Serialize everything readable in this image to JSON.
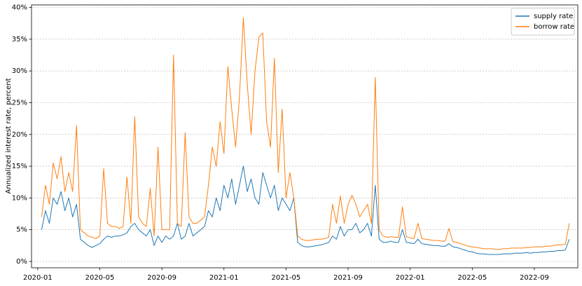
{
  "chart_data": {
    "type": "line",
    "ylabel": "Annualized interest rate, percent",
    "x": [
      0.25,
      0.5,
      0.75,
      1,
      1.25,
      1.5,
      1.75,
      2,
      2.25,
      2.5,
      2.75,
      3,
      3.25,
      3.5,
      3.75,
      4,
      4.25,
      4.5,
      4.75,
      5,
      5.25,
      5.5,
      5.75,
      6,
      6.25,
      6.5,
      6.75,
      7,
      7.25,
      7.5,
      7.75,
      8,
      8.25,
      8.5,
      8.75,
      9,
      9.25,
      9.5,
      9.75,
      10,
      10.25,
      10.5,
      10.75,
      11,
      11.25,
      11.5,
      11.75,
      12,
      12.25,
      12.5,
      12.75,
      13,
      13.25,
      13.5,
      13.75,
      14,
      14.25,
      14.5,
      14.75,
      15,
      15.25,
      15.5,
      15.75,
      16,
      16.25,
      16.5,
      16.75,
      17,
      17.25,
      17.5,
      17.75,
      18,
      18.25,
      18.5,
      18.75,
      19,
      19.25,
      19.5,
      19.75,
      20,
      20.25,
      20.5,
      20.75,
      21,
      21.25,
      21.5,
      21.75,
      22,
      22.25,
      22.5,
      22.75,
      23,
      23.25,
      23.5,
      23.75,
      24,
      24.25,
      24.5,
      24.75,
      25,
      25.25,
      25.5,
      25.75,
      26,
      26.25,
      26.5,
      26.75,
      27,
      27.25,
      27.5,
      27.75,
      28,
      28.25,
      28.5,
      28.75,
      29,
      29.25,
      29.5,
      29.75,
      30,
      30.25,
      30.5,
      30.75,
      31,
      31.25,
      31.5,
      31.75,
      32,
      32.25,
      32.5,
      32.75,
      33,
      33.25,
      33.5,
      33.75,
      34,
      34.25
    ],
    "series": [
      {
        "name": "supply rate",
        "color": "#1f77b4",
        "values": [
          5,
          8,
          6,
          10,
          9,
          11,
          8,
          10,
          7,
          9,
          3.5,
          3,
          2.5,
          2.2,
          2.5,
          2.8,
          3.5,
          4,
          3.8,
          4,
          4,
          4.2,
          4.5,
          5.5,
          6,
          5,
          4.5,
          4,
          5,
          2.5,
          4,
          3,
          4,
          3.5,
          4,
          6,
          3.5,
          4,
          6,
          4,
          4.5,
          5,
          5.5,
          8,
          7,
          10,
          8,
          12,
          10,
          13,
          9,
          12,
          15,
          11,
          13,
          10,
          9,
          14,
          12,
          10,
          12,
          8,
          10,
          9,
          8,
          10,
          3,
          2.5,
          2.3,
          2.3,
          2.4,
          2.5,
          2.6,
          2.8,
          3,
          4,
          3.5,
          5.5,
          4,
          5,
          5,
          6,
          4.5,
          5,
          6,
          4,
          12,
          3.5,
          3,
          3,
          3.2,
          3,
          3,
          5,
          3,
          2.9,
          2.8,
          3.5,
          2.8,
          2.7,
          2.6,
          2.5,
          2.5,
          2.4,
          2.4,
          2.8,
          2.3,
          2.2,
          2,
          1.8,
          1.6,
          1.5,
          1.3,
          1.2,
          1.2,
          1.1,
          1.1,
          1.1,
          1.1,
          1.2,
          1.2,
          1.2,
          1.3,
          1.3,
          1.3,
          1.4,
          1.3,
          1.4,
          1.4,
          1.5,
          1.5,
          1.6,
          1.6,
          1.7,
          1.7,
          1.8,
          3.5
        ]
      },
      {
        "name": "borrow rate",
        "color": "#ff7f0e",
        "values": [
          7,
          12,
          9,
          15.5,
          13,
          16.5,
          11,
          14,
          11,
          21.4,
          5,
          4.5,
          4,
          3.8,
          3.6,
          4,
          14.6,
          6,
          5.5,
          5.5,
          5.2,
          5.5,
          13.3,
          6,
          22.8,
          7,
          6,
          5.5,
          11.5,
          4,
          18,
          5,
          5,
          5,
          32.5,
          6,
          5.5,
          20.3,
          7,
          6,
          6,
          6.5,
          7,
          12,
          18,
          15,
          22,
          17,
          30.7,
          24,
          18,
          26,
          38.4,
          28,
          20,
          30,
          35.3,
          36,
          22,
          18,
          32,
          14,
          24,
          10,
          14,
          10,
          4,
          3.5,
          3.3,
          3.3,
          3.4,
          3.5,
          3.5,
          3.6,
          3.8,
          9,
          6,
          10.3,
          6,
          9,
          10.4,
          9,
          7,
          8,
          9,
          6,
          29,
          5,
          4,
          3.8,
          3.9,
          3.8,
          3.8,
          8.6,
          3.9,
          3.7,
          3.6,
          6,
          3.6,
          3.5,
          3.4,
          3.3,
          3.3,
          3.2,
          3.2,
          5.2,
          3.1,
          3,
          2.8,
          2.6,
          2.4,
          2.3,
          2.2,
          2.1,
          2,
          2,
          2,
          1.9,
          1.9,
          2,
          2,
          2.1,
          2.1,
          2.1,
          2.1,
          2.2,
          2.2,
          2.3,
          2.3,
          2.3,
          2.4,
          2.4,
          2.5,
          2.6,
          2.6,
          2.7,
          6
        ]
      }
    ],
    "xlim": [
      -0.4,
      34.8
    ],
    "xticks": [
      {
        "value": 0,
        "label": "2020-01"
      },
      {
        "value": 4,
        "label": "2020-05"
      },
      {
        "value": 8,
        "label": "2020-09"
      },
      {
        "value": 12,
        "label": "2021-01"
      },
      {
        "value": 16,
        "label": "2021-05"
      },
      {
        "value": 20,
        "label": "2021-09"
      },
      {
        "value": 24,
        "label": "2022-01"
      },
      {
        "value": 28,
        "label": "2022-05"
      },
      {
        "value": 32,
        "label": "2022-09"
      }
    ],
    "ylim": [
      -1,
      40.4
    ],
    "yticks": [
      {
        "value": 0,
        "label": "0%"
      },
      {
        "value": 5,
        "label": "5%"
      },
      {
        "value": 10,
        "label": "10%"
      },
      {
        "value": 15,
        "label": "15%"
      },
      {
        "value": 20,
        "label": "20%"
      },
      {
        "value": 25,
        "label": "25%"
      },
      {
        "value": 30,
        "label": "30%"
      },
      {
        "value": 35,
        "label": "35%"
      },
      {
        "value": 40,
        "label": "40%"
      }
    ],
    "grid": "y",
    "legend": "upper right"
  }
}
